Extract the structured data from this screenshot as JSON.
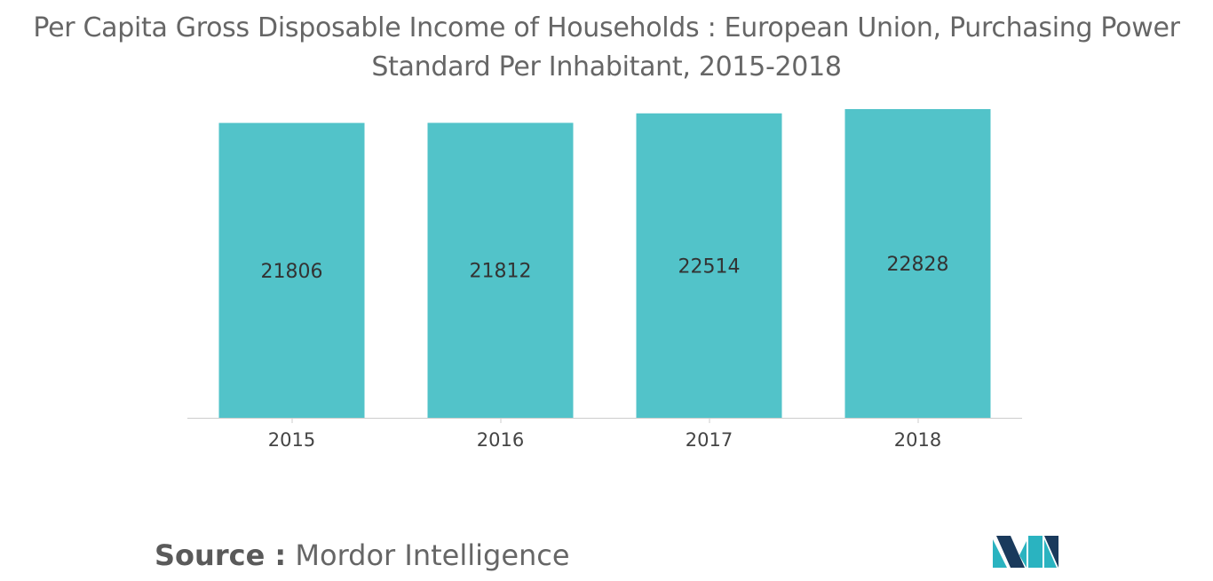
{
  "title": {
    "line1": "Per Capita Gross Disposable Income of Households : European Union, Purchasing Power",
    "line2": "Standard Per Inhabitant, 2015-2018"
  },
  "source": {
    "label": "Source :",
    "value": "Mordor Intelligence"
  },
  "logo": {
    "icon": "mordor-intelligence-logo-icon",
    "colors": [
      "#1a3a5c",
      "#2ab3c0"
    ]
  },
  "chart_data": {
    "type": "bar",
    "categories": [
      "2015",
      "2016",
      "2017",
      "2018"
    ],
    "values": [
      21806,
      21812,
      22514,
      22828
    ],
    "data_labels": [
      "21806",
      "21812",
      "22514",
      "22828"
    ],
    "title": "Per Capita Gross Disposable Income of Households : European Union, Purchasing Power Standard Per Inhabitant, 2015-2018",
    "xlabel": "",
    "ylabel": "",
    "ylim": [
      0,
      22828
    ],
    "grid": false,
    "legend": "none",
    "bar_color": "#52c3c9",
    "axis_color": "#cccccc",
    "label_color": "#333333"
  }
}
